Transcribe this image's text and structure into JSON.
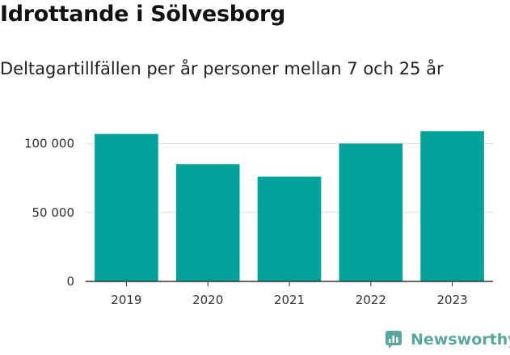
{
  "title": "Idrottande i Sölvesborg",
  "subtitle": "Deltagartillfällen per år personer mellan 7 och 25 år",
  "brand": {
    "name": "Newsworthy",
    "icon": "newsworthy-logo-icon"
  },
  "colors": {
    "bar": "#00a29a",
    "grid": "#dddddd",
    "axis": "#333333",
    "brand": "#5aa79e"
  },
  "chart_data": {
    "type": "bar",
    "categories": [
      "2019",
      "2020",
      "2021",
      "2022",
      "2023"
    ],
    "values": [
      107000,
      85000,
      76000,
      100000,
      109000
    ],
    "ylim": [
      0,
      115000
    ],
    "yticks": [
      0,
      50000,
      100000
    ],
    "ytick_labels": [
      "0",
      "50 000",
      "100 000"
    ],
    "xlabel": "",
    "ylabel": "",
    "grid": true,
    "legend": false
  }
}
